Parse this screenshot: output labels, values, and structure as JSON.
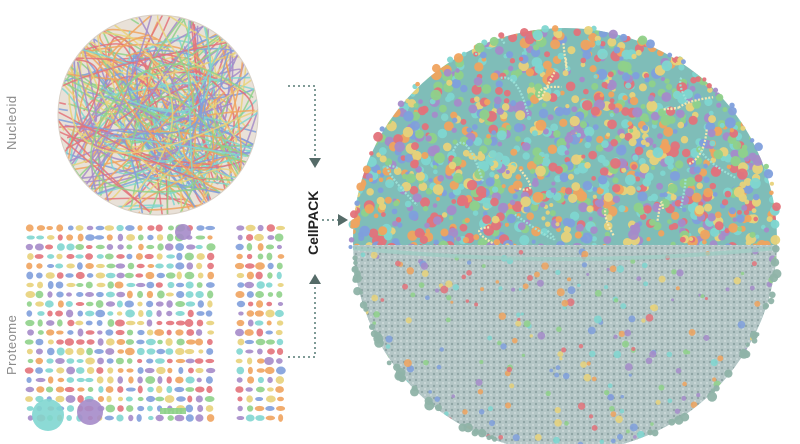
{
  "labels": {
    "nucleoid": "Nucleoid",
    "proteome": "Proteome",
    "cellpack": "CellPACK"
  },
  "colors": {
    "teal": "#7fd6d0",
    "pink": "#e3727a",
    "purple": "#a58bc9",
    "orange": "#f0a35e",
    "yellow": "#e8d27a",
    "blue": "#7f9fdc",
    "green": "#8fd18a",
    "membrane": "#a9bcbc",
    "connector": "#7f9a96"
  },
  "icons": [
    "arrow-right-icon",
    "arrow-down-icon",
    "arrow-up-icon"
  ]
}
